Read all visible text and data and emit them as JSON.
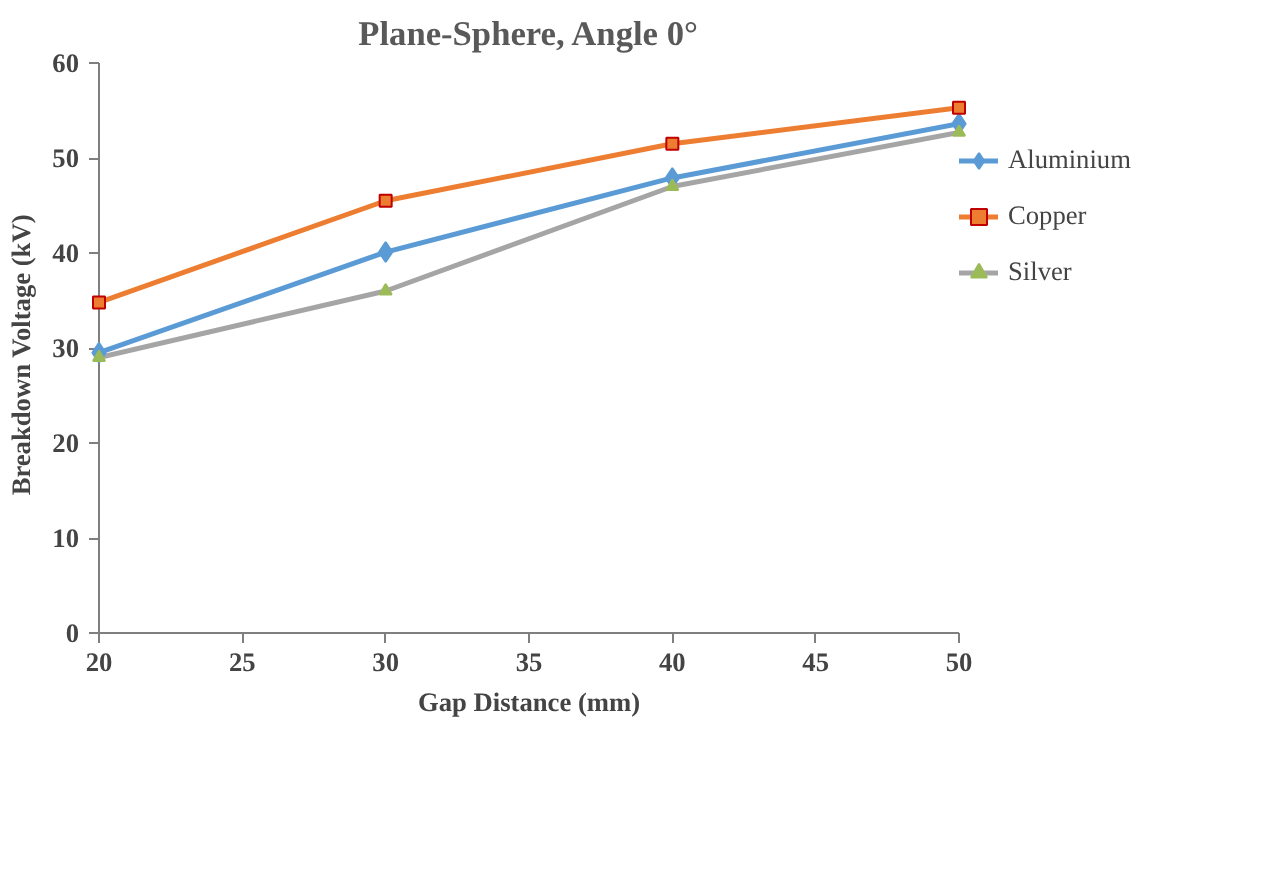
{
  "chart_data": {
    "type": "line",
    "title": "Plane-Sphere, Angle 0°",
    "xlabel": "Gap Distance (mm)",
    "ylabel": "Breakdown  Voltage  (kV)",
    "x": [
      20,
      30,
      40,
      50
    ],
    "series": [
      {
        "name": "Aluminium",
        "color": "#5b9bd5",
        "marker": "diamond",
        "values": [
          29.5,
          40.1,
          47.9,
          53.6
        ]
      },
      {
        "name": "Copper",
        "color": "#ed7d31",
        "marker": "square",
        "values": [
          34.8,
          45.5,
          51.5,
          55.3
        ]
      },
      {
        "name": "Silver",
        "color": "#a5a5a5",
        "marker": "triangle",
        "values": [
          29.0,
          36.0,
          47.0,
          52.7
        ]
      }
    ],
    "xlim": [
      20,
      50
    ],
    "xticks": [
      20,
      25,
      30,
      35,
      40,
      45,
      50
    ],
    "ylim": [
      0,
      60
    ],
    "yticks": [
      0,
      10,
      20,
      30,
      40,
      50,
      60
    ],
    "grid": false,
    "legend": "right"
  }
}
